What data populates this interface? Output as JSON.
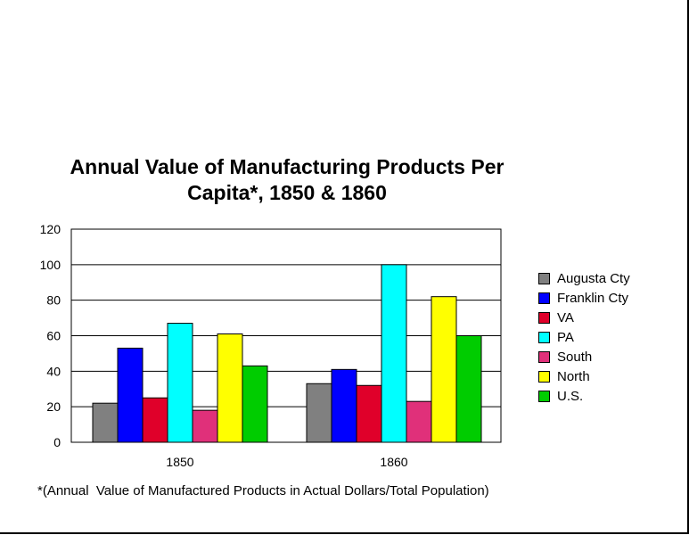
{
  "chart_data": {
    "type": "bar",
    "title": [
      "Annual Value of Manufacturing Products Per",
      "Capita*, 1850 & 1860"
    ],
    "categories": [
      "1850",
      "1860"
    ],
    "series": [
      {
        "name": "Augusta Cty",
        "values": [
          22,
          33
        ],
        "color": "#808080"
      },
      {
        "name": "Franklin Cty",
        "values": [
          53,
          41
        ],
        "color": "#0000ff"
      },
      {
        "name": "VA",
        "values": [
          25,
          32
        ],
        "color": "#e0002a"
      },
      {
        "name": "PA",
        "values": [
          67,
          100
        ],
        "color": "#00ffff"
      },
      {
        "name": "South",
        "values": [
          18,
          23
        ],
        "color": "#e0307a"
      },
      {
        "name": "North",
        "values": [
          61,
          82
        ],
        "color": "#ffff00"
      },
      {
        "name": "U.S.",
        "values": [
          43,
          60
        ],
        "color": "#00cc00"
      }
    ],
    "ylim": [
      0,
      120
    ],
    "yticks": [
      0,
      20,
      40,
      60,
      80,
      100,
      120
    ],
    "grid": true,
    "legend": "right",
    "footnote": "*(Annual  Value of Manufactured Products in Actual Dollars/Total Population)"
  }
}
